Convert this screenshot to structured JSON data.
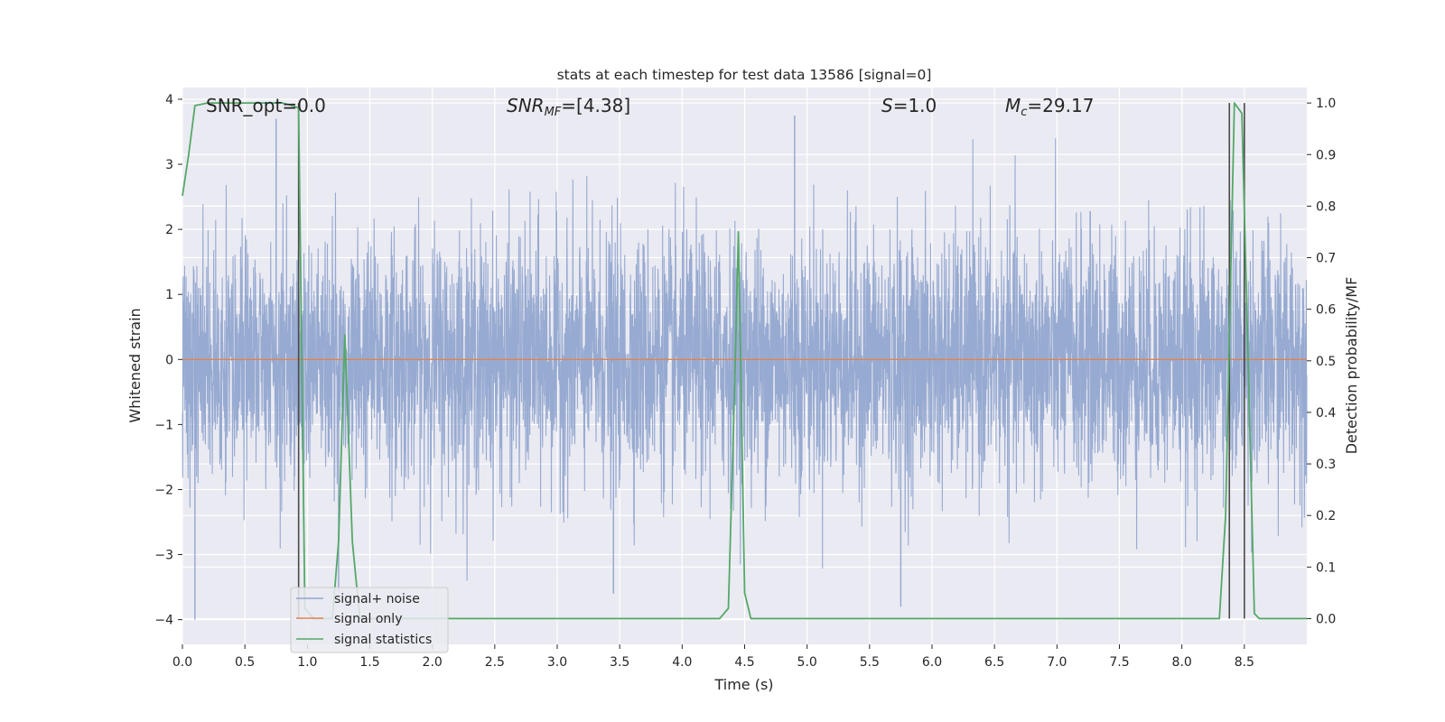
{
  "chart_data": {
    "type": "line",
    "title": "stats at each timestep for test data 13586 [signal=0]",
    "xlabel": "Time (s)",
    "ylabel_left": "Whitened strain",
    "ylabel_right": "Detection probability/MF",
    "xlim": [
      0.0,
      9.0
    ],
    "ylim_left": [
      -4.38,
      4.18
    ],
    "ylim_right": [
      -0.05,
      1.03
    ],
    "x_ticks": [
      "0.0",
      "0.5",
      "1.0",
      "1.5",
      "2.0",
      "2.5",
      "3.0",
      "3.5",
      "4.0",
      "4.5",
      "5.0",
      "5.5",
      "6.0",
      "6.5",
      "7.0",
      "7.5",
      "8.0",
      "8.5"
    ],
    "y_left_ticks": [
      "4",
      "3",
      "2",
      "1",
      "0",
      "−1",
      "−2",
      "−3",
      "−4"
    ],
    "y_right_ticks": [
      "1.0",
      "0.9",
      "0.8",
      "0.7",
      "0.6",
      "0.5",
      "0.4",
      "0.3",
      "0.2",
      "0.1",
      "0.0"
    ],
    "grid": true,
    "legend_position": "lower-left",
    "annotations": {
      "snr_opt": "SNR_opt=0.0",
      "snr_mf_main": "SNR",
      "snr_mf_sub": "MF",
      "snr_mf_value": "=[4.38]",
      "s_main": "S",
      "s_value": "=1.0",
      "mc_main": "M",
      "mc_sub": "c",
      "mc_value": "=29.17"
    },
    "series": [
      {
        "name": "signal+ noise",
        "color": "#92a6cf",
        "description_values": "whitened noise, approx. gaussian, |y| mostly < 2.5, extremes near ±3.8, min -4.0 near t=0.1",
        "amplitude_envelope": 2.2,
        "extreme_peaks": [
          [
            0.1,
            -4.0
          ],
          [
            0.75,
            3.7
          ],
          [
            4.9,
            3.75
          ],
          [
            5.75,
            -3.8
          ],
          [
            1.25,
            -3.6
          ],
          [
            3.45,
            -3.6
          ]
        ]
      },
      {
        "name": "signal only",
        "color": "#dd8452",
        "x": [
          0.0,
          9.0
        ],
        "y": [
          0.0,
          0.0
        ]
      },
      {
        "name": "signal statistics",
        "color": "#55a868",
        "axis": "right",
        "x": [
          0.0,
          0.05,
          0.1,
          0.2,
          0.5,
          0.8,
          0.88,
          0.93,
          0.98,
          1.05,
          1.2,
          1.25,
          1.3,
          1.36,
          1.42,
          1.5,
          2.0,
          3.0,
          4.0,
          4.3,
          4.37,
          4.42,
          4.45,
          4.5,
          4.55,
          5.0,
          6.0,
          7.0,
          8.0,
          8.3,
          8.35,
          8.42,
          8.48,
          8.52,
          8.58,
          8.62,
          9.0
        ],
        "y": [
          0.82,
          0.9,
          0.995,
          1.0,
          1.0,
          1.0,
          0.995,
          0.99,
          0.02,
          0.0,
          0.0,
          0.15,
          0.55,
          0.15,
          0.0,
          0.0,
          0.0,
          0.0,
          0.0,
          0.0,
          0.02,
          0.45,
          0.75,
          0.05,
          0.0,
          0.0,
          0.0,
          0.0,
          0.0,
          0.0,
          0.2,
          1.0,
          0.98,
          0.6,
          0.01,
          0.0,
          0.0
        ]
      }
    ],
    "vertical_lines": [
      0.93,
      8.38,
      8.5
    ],
    "vertical_line_color": "#4a4a4a"
  }
}
